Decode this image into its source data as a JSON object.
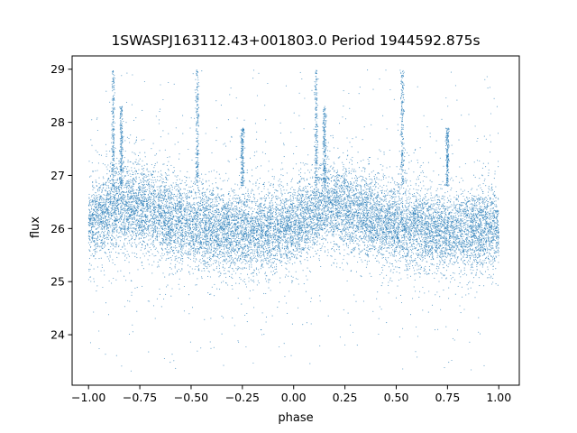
{
  "chart_data": {
    "type": "scatter",
    "title": "1SWASPJ163112.43+001803.0 Period 1944592.875s",
    "xlabel": "phase",
    "ylabel": "flux",
    "xlim": [
      -1.08,
      1.1
    ],
    "ylim": [
      23.05,
      29.25
    ],
    "x_ticks": [
      -1.0,
      -0.75,
      -0.5,
      -0.25,
      0.0,
      0.25,
      0.5,
      0.75,
      1.0
    ],
    "x_tick_labels": [
      "−1.00",
      "−0.75",
      "−0.50",
      "−0.25",
      "0.00",
      "0.25",
      "0.50",
      "0.75",
      "1.00"
    ],
    "y_ticks": [
      24,
      25,
      26,
      27,
      28,
      29
    ],
    "y_tick_labels": [
      "24",
      "25",
      "26",
      "27",
      "28",
      "29"
    ],
    "grid": false,
    "legend": "none",
    "marker_color": "#1f77b4",
    "series": [
      {
        "x_range": [
          -1.0,
          1.0
        ],
        "median_flux_profile": [
          {
            "phase": -1.0,
            "flux": 26.1
          },
          {
            "phase": -0.85,
            "flux": 26.45
          },
          {
            "phase": -0.7,
            "flux": 26.35
          },
          {
            "phase": -0.55,
            "flux": 26.1
          },
          {
            "phase": -0.35,
            "flux": 25.95
          },
          {
            "phase": -0.15,
            "flux": 25.95
          },
          {
            "phase": 0.0,
            "flux": 26.05
          },
          {
            "phase": 0.15,
            "flux": 26.45
          },
          {
            "phase": 0.3,
            "flux": 26.35
          },
          {
            "phase": 0.45,
            "flux": 26.1
          },
          {
            "phase": 0.65,
            "flux": 25.95
          },
          {
            "phase": 0.85,
            "flux": 25.95
          },
          {
            "phase": 1.0,
            "flux": 26.05
          }
        ],
        "core_spread": 0.38,
        "flux_min": 23.3,
        "flux_max": 29.0,
        "spikes": [
          {
            "phase": -0.88,
            "flux_top": 29.0
          },
          {
            "phase": -0.84,
            "flux_top": 28.3
          },
          {
            "phase": -0.47,
            "flux_top": 29.0
          },
          {
            "phase": -0.25,
            "flux_top": 27.9
          },
          {
            "phase": 0.11,
            "flux_top": 29.0
          },
          {
            "phase": 0.15,
            "flux_top": 28.3
          },
          {
            "phase": 0.53,
            "flux_top": 29.0
          },
          {
            "phase": 0.75,
            "flux_top": 27.9
          }
        ]
      }
    ]
  }
}
